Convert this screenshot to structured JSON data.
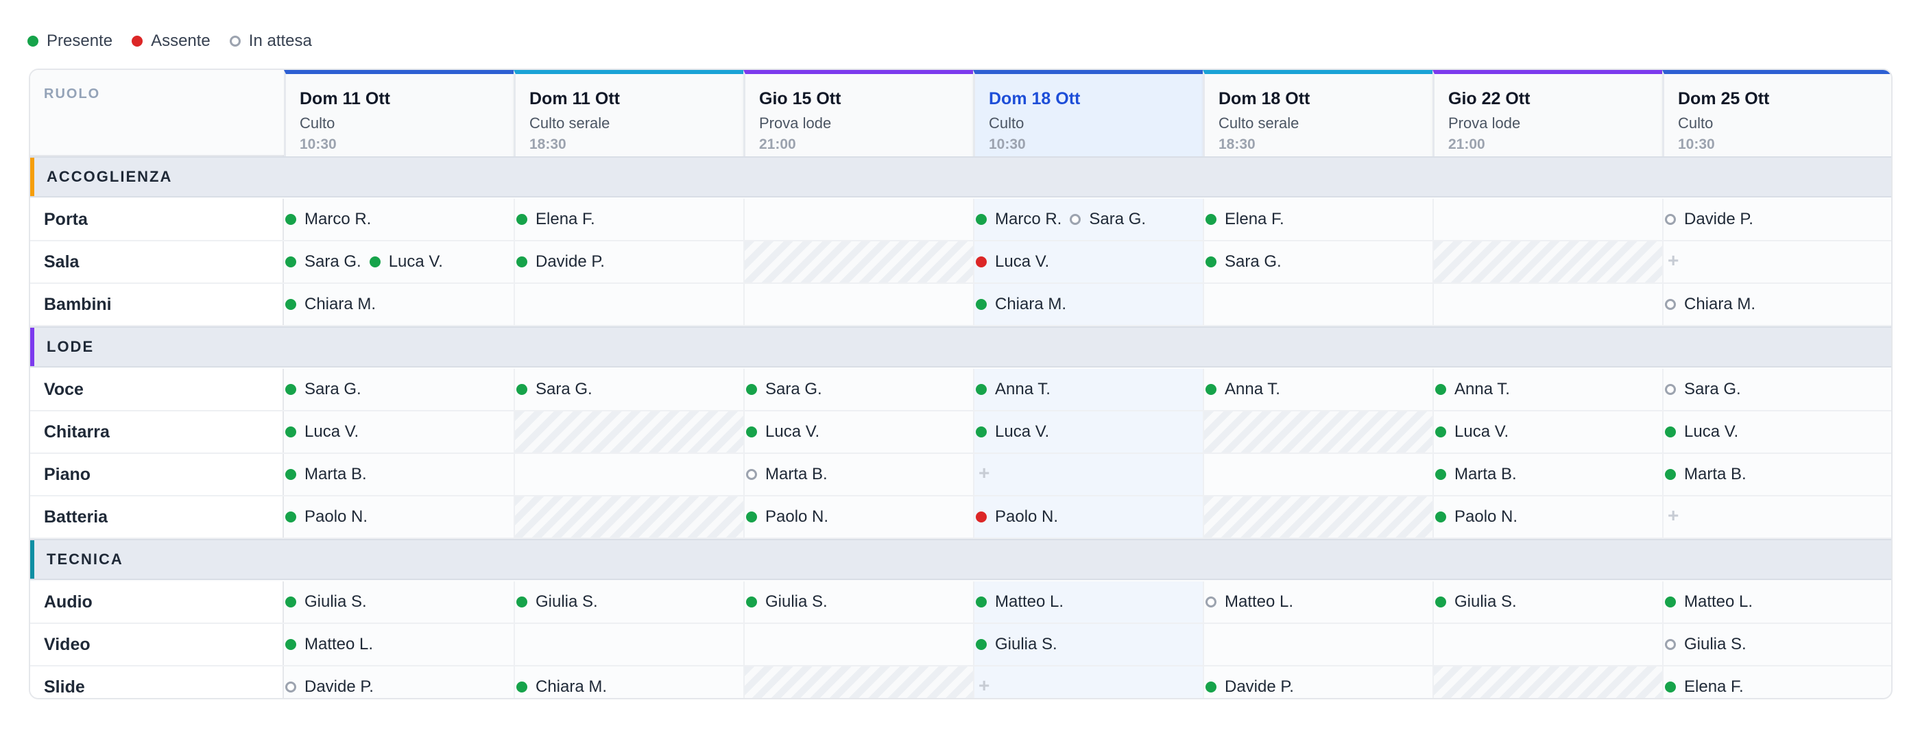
{
  "colors": {
    "present": "#16a34a",
    "absent": "#dc2626",
    "pending": "#9ca3af"
  },
  "legend": [
    {
      "status": "present",
      "label": "Presente"
    },
    {
      "status": "absent",
      "label": "Assente"
    },
    {
      "status": "pending",
      "label": "In attesa"
    }
  ],
  "header": {
    "role_label": "RUOLO"
  },
  "services": [
    {
      "day": "Dom 11 Ott",
      "name": "Culto",
      "time": "10:30",
      "accent": "#2d5fd3",
      "highlight": false
    },
    {
      "day": "Dom 11 Ott",
      "name": "Culto serale",
      "time": "18:30",
      "accent": "#1aa2d6",
      "highlight": false
    },
    {
      "day": "Gio 15 Ott",
      "name": "Prova lode",
      "time": "21:00",
      "accent": "#7c3aed",
      "highlight": false
    },
    {
      "day": "Dom 18 Ott",
      "name": "Culto",
      "time": "10:30",
      "accent": "#2d5fd3",
      "highlight": true
    },
    {
      "day": "Dom 18 Ott",
      "name": "Culto serale",
      "time": "18:30",
      "accent": "#1aa2d6",
      "highlight": false
    },
    {
      "day": "Gio 22 Ott",
      "name": "Prova lode",
      "time": "21:00",
      "accent": "#7c3aed",
      "highlight": false
    },
    {
      "day": "Dom 25 Ott",
      "name": "Culto",
      "time": "10:30",
      "accent": "#2d5fd3",
      "highlight": false
    }
  ],
  "groups": [
    {
      "name": "ACCOGLIENZA",
      "accent": "#f59e0b",
      "roles": [
        {
          "name": "Porta",
          "cells": [
            {
              "entries": [
                {
                  "name": "Marco R.",
                  "status": "present"
                }
              ]
            },
            {
              "entries": [
                {
                  "name": "Elena F.",
                  "status": "present"
                }
              ]
            },
            {
              "entries": []
            },
            {
              "entries": [
                {
                  "name": "Marco R.",
                  "status": "present"
                },
                {
                  "name": "Sara G.",
                  "status": "pending"
                }
              ]
            },
            {
              "entries": [
                {
                  "name": "Elena F.",
                  "status": "present"
                }
              ]
            },
            {
              "entries": []
            },
            {
              "entries": [
                {
                  "name": "Davide P.",
                  "status": "pending"
                }
              ]
            }
          ]
        },
        {
          "name": "Sala",
          "cells": [
            {
              "entries": [
                {
                  "name": "Sara G.",
                  "status": "present"
                },
                {
                  "name": "Luca V.",
                  "status": "present"
                }
              ]
            },
            {
              "entries": [
                {
                  "name": "Davide P.",
                  "status": "present"
                }
              ]
            },
            {
              "entries": [],
              "unavailable": true
            },
            {
              "entries": [
                {
                  "name": "Luca V.",
                  "status": "absent"
                }
              ]
            },
            {
              "entries": [
                {
                  "name": "Sara G.",
                  "status": "present"
                }
              ]
            },
            {
              "entries": [],
              "unavailable": true
            },
            {
              "entries": [],
              "empty_slot": true
            }
          ]
        },
        {
          "name": "Bambini",
          "cells": [
            {
              "entries": [
                {
                  "name": "Chiara M.",
                  "status": "present"
                }
              ]
            },
            {
              "entries": []
            },
            {
              "entries": []
            },
            {
              "entries": [
                {
                  "name": "Chiara M.",
                  "status": "present"
                }
              ]
            },
            {
              "entries": []
            },
            {
              "entries": []
            },
            {
              "entries": [
                {
                  "name": "Chiara M.",
                  "status": "pending"
                }
              ]
            }
          ]
        }
      ]
    },
    {
      "name": "LODE",
      "accent": "#7c3aed",
      "roles": [
        {
          "name": "Voce",
          "cells": [
            {
              "entries": [
                {
                  "name": "Sara G.",
                  "status": "present"
                }
              ]
            },
            {
              "entries": [
                {
                  "name": "Sara G.",
                  "status": "present"
                }
              ]
            },
            {
              "entries": [
                {
                  "name": "Sara G.",
                  "status": "present"
                }
              ]
            },
            {
              "entries": [
                {
                  "name": "Anna T.",
                  "status": "present"
                }
              ]
            },
            {
              "entries": [
                {
                  "name": "Anna T.",
                  "status": "present"
                }
              ]
            },
            {
              "entries": [
                {
                  "name": "Anna T.",
                  "status": "present"
                }
              ]
            },
            {
              "entries": [
                {
                  "name": "Sara G.",
                  "status": "pending"
                }
              ]
            }
          ]
        },
        {
          "name": "Chitarra",
          "cells": [
            {
              "entries": [
                {
                  "name": "Luca V.",
                  "status": "present"
                }
              ]
            },
            {
              "entries": [],
              "unavailable": true
            },
            {
              "entries": [
                {
                  "name": "Luca V.",
                  "status": "present"
                }
              ]
            },
            {
              "entries": [
                {
                  "name": "Luca V.",
                  "status": "present"
                }
              ]
            },
            {
              "entries": [],
              "unavailable": true
            },
            {
              "entries": [
                {
                  "name": "Luca V.",
                  "status": "present"
                }
              ]
            },
            {
              "entries": [
                {
                  "name": "Luca V.",
                  "status": "present"
                }
              ]
            }
          ]
        },
        {
          "name": "Piano",
          "cells": [
            {
              "entries": [
                {
                  "name": "Marta B.",
                  "status": "present"
                }
              ]
            },
            {
              "entries": []
            },
            {
              "entries": [
                {
                  "name": "Marta B.",
                  "status": "pending"
                }
              ]
            },
            {
              "entries": [],
              "empty_slot": true
            },
            {
              "entries": []
            },
            {
              "entries": [
                {
                  "name": "Marta B.",
                  "status": "present"
                }
              ]
            },
            {
              "entries": [
                {
                  "name": "Marta B.",
                  "status": "present"
                }
              ]
            }
          ]
        },
        {
          "name": "Batteria",
          "cells": [
            {
              "entries": [
                {
                  "name": "Paolo N.",
                  "status": "present"
                }
              ]
            },
            {
              "entries": [],
              "unavailable": true
            },
            {
              "entries": [
                {
                  "name": "Paolo N.",
                  "status": "present"
                }
              ]
            },
            {
              "entries": [
                {
                  "name": "Paolo N.",
                  "status": "absent"
                }
              ]
            },
            {
              "entries": [],
              "unavailable": true
            },
            {
              "entries": [
                {
                  "name": "Paolo N.",
                  "status": "present"
                }
              ]
            },
            {
              "entries": [],
              "empty_slot": true
            }
          ]
        }
      ]
    },
    {
      "name": "TECNICA",
      "accent": "#0e8fa3",
      "roles": [
        {
          "name": "Audio",
          "cells": [
            {
              "entries": [
                {
                  "name": "Giulia S.",
                  "status": "present"
                }
              ]
            },
            {
              "entries": [
                {
                  "name": "Giulia S.",
                  "status": "present"
                }
              ]
            },
            {
              "entries": [
                {
                  "name": "Giulia S.",
                  "status": "present"
                }
              ]
            },
            {
              "entries": [
                {
                  "name": "Matteo L.",
                  "status": "present"
                }
              ]
            },
            {
              "entries": [
                {
                  "name": "Matteo L.",
                  "status": "pending"
                }
              ]
            },
            {
              "entries": [
                {
                  "name": "Giulia S.",
                  "status": "present"
                }
              ]
            },
            {
              "entries": [
                {
                  "name": "Matteo L.",
                  "status": "present"
                }
              ]
            }
          ]
        },
        {
          "name": "Video",
          "cells": [
            {
              "entries": [
                {
                  "name": "Matteo L.",
                  "status": "present"
                }
              ]
            },
            {
              "entries": []
            },
            {
              "entries": []
            },
            {
              "entries": [
                {
                  "name": "Giulia S.",
                  "status": "present"
                }
              ]
            },
            {
              "entries": []
            },
            {
              "entries": []
            },
            {
              "entries": [
                {
                  "name": "Giulia S.",
                  "status": "pending"
                }
              ]
            }
          ]
        },
        {
          "name": "Slide",
          "cells": [
            {
              "entries": [
                {
                  "name": "Davide P.",
                  "status": "pending"
                }
              ]
            },
            {
              "entries": [
                {
                  "name": "Chiara M.",
                  "status": "present"
                }
              ]
            },
            {
              "entries": [],
              "unavailable": true
            },
            {
              "entries": [],
              "empty_slot": true
            },
            {
              "entries": [
                {
                  "name": "Davide P.",
                  "status": "present"
                }
              ]
            },
            {
              "entries": [],
              "unavailable": true
            },
            {
              "entries": [
                {
                  "name": "Elena F.",
                  "status": "present"
                }
              ]
            }
          ]
        }
      ]
    }
  ]
}
